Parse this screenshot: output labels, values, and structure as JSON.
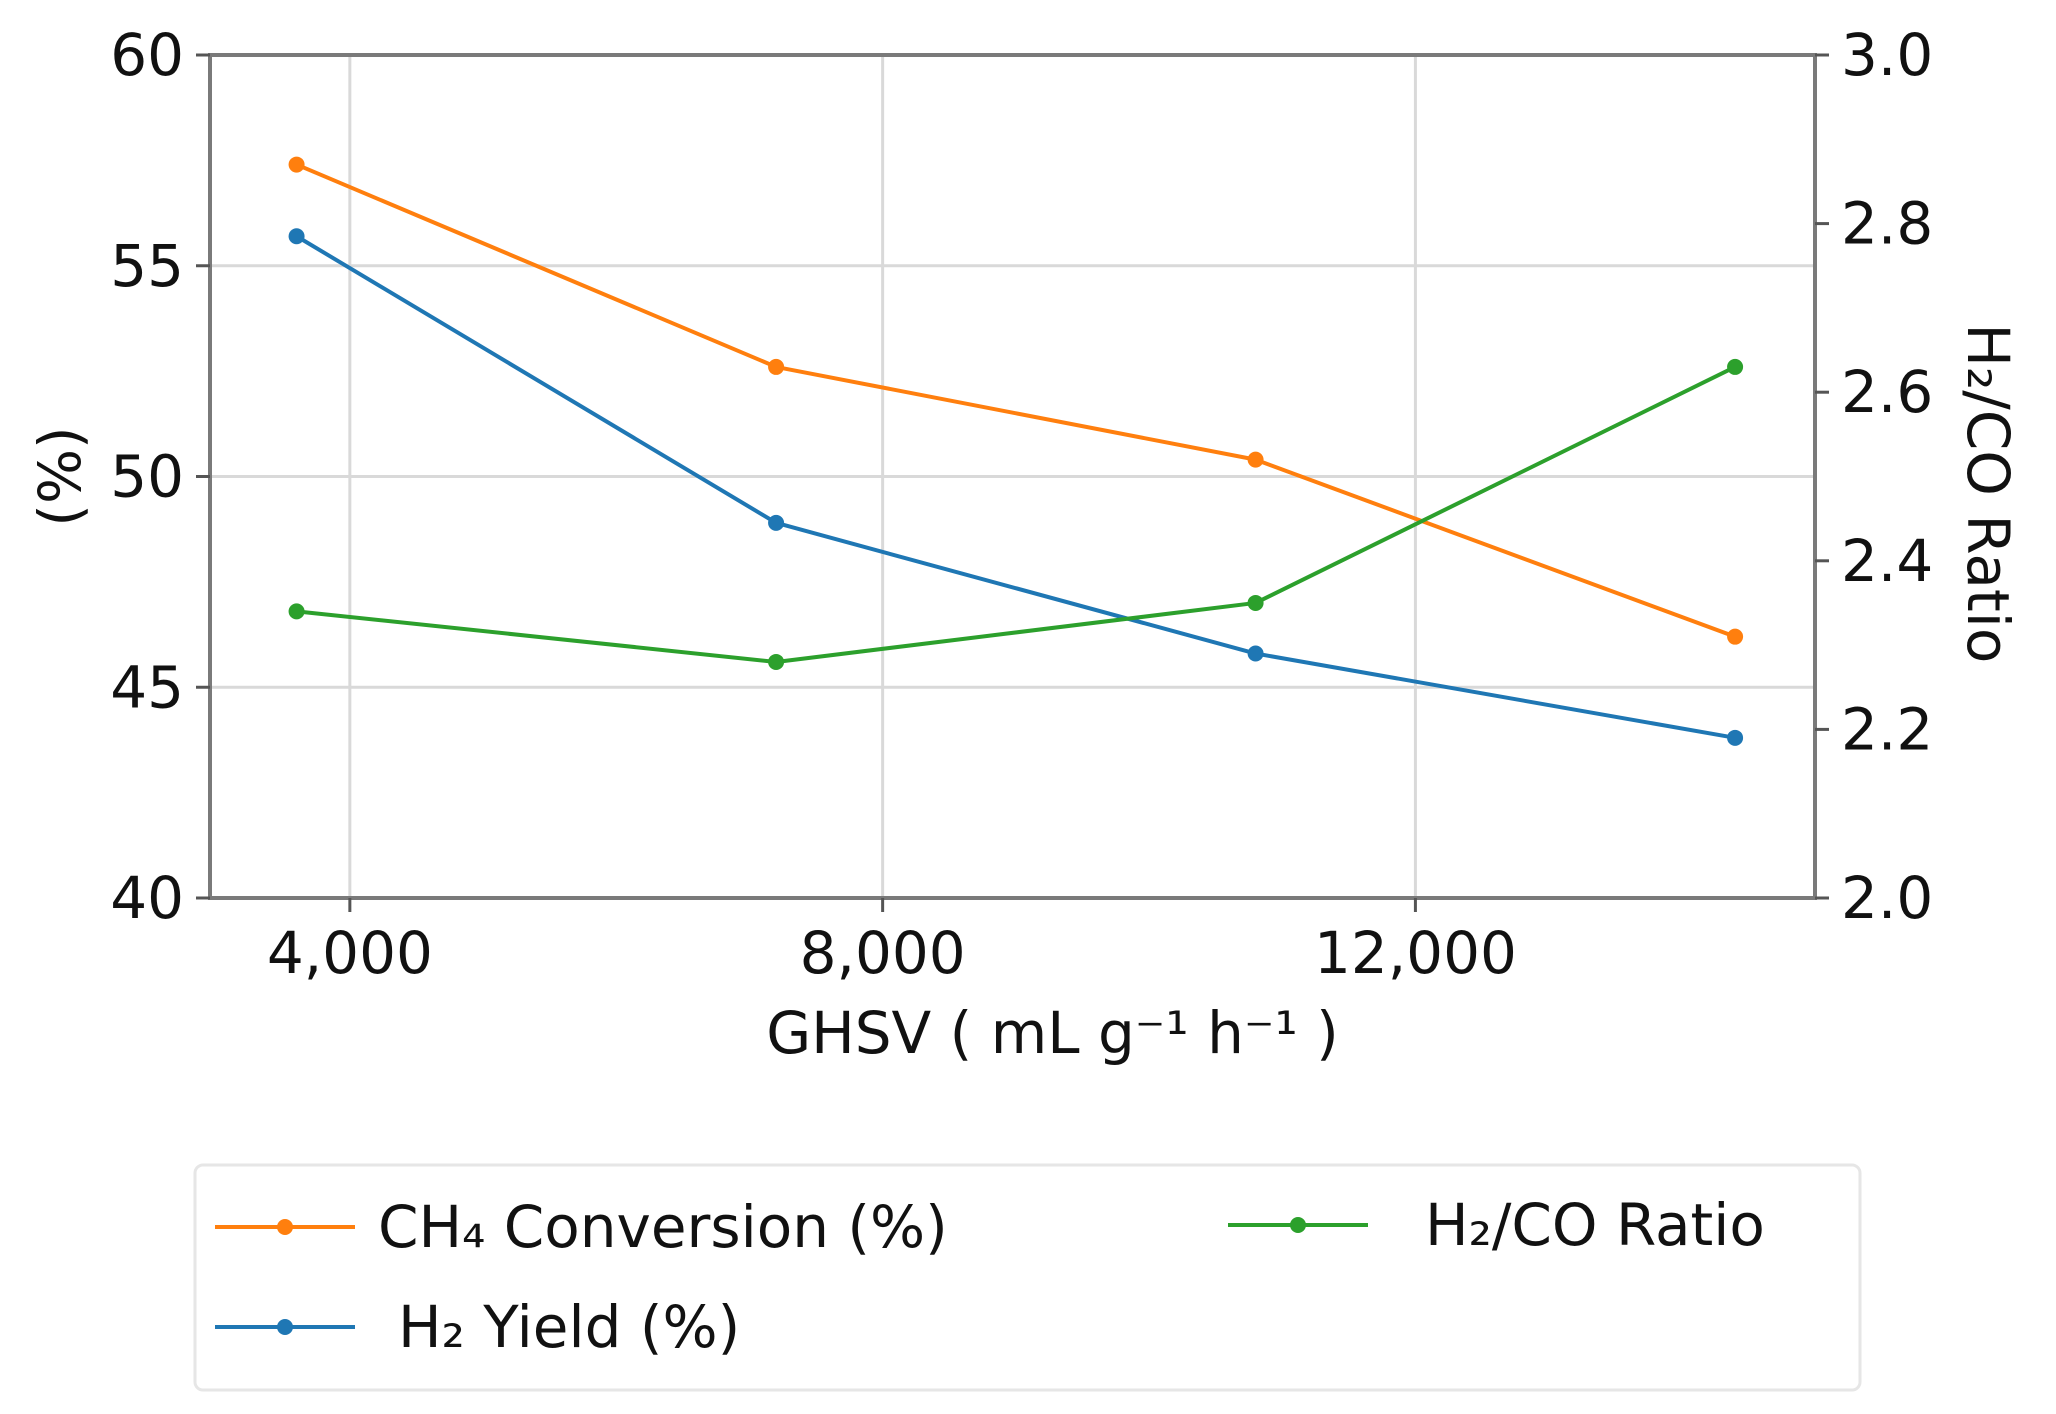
{
  "chart_data": {
    "type": "line",
    "x_axis": {
      "label": "GHSV ( mL g⁻¹ h⁻¹ )",
      "ticks": [
        4000,
        8000,
        12000
      ],
      "tick_labels": [
        "4,000",
        "8,000",
        "12,000"
      ],
      "range": [
        2950,
        15000
      ]
    },
    "y_left": {
      "label": "(%)",
      "range": [
        40,
        60
      ],
      "ticks": [
        40,
        45,
        50,
        55,
        60
      ]
    },
    "y_right": {
      "label": "H₂/CO Ratio",
      "range": [
        2.0,
        3.0
      ],
      "ticks": [
        2.0,
        2.2,
        2.4,
        2.6,
        2.8,
        3.0
      ],
      "tick_labels": [
        "2.0",
        "2.2",
        "2.4",
        "2.6",
        "2.8",
        "3.0"
      ]
    },
    "x": [
      3600,
      7200,
      10800,
      14400
    ],
    "series": [
      {
        "name": "CH₄ Conversion (%)",
        "axis": "left",
        "color": "#ff7f0e",
        "values": [
          57.4,
          52.6,
          50.4,
          46.2
        ]
      },
      {
        "name": "H₂ Yield (%)",
        "axis": "left",
        "color": "#1f77b4",
        "values": [
          55.7,
          48.9,
          45.8,
          43.8
        ]
      },
      {
        "name": "H₂/CO Ratio",
        "axis": "right",
        "color": "#2ca02c",
        "values": [
          2.34,
          2.28,
          2.35,
          2.63
        ]
      }
    ],
    "grid": true,
    "legend_position": "bottom"
  }
}
